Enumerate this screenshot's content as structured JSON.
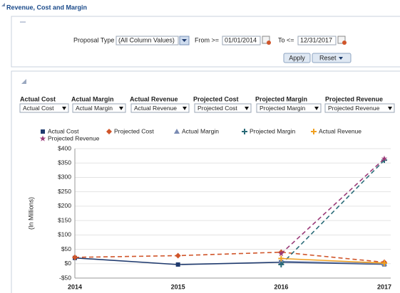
{
  "header": {
    "title": "Revenue, Cost and Margin"
  },
  "filters": {
    "proposal_type_label": "Proposal Type",
    "proposal_type_value": "(All Column Values)",
    "from_label": "From >=",
    "from_value": "01/01/2014",
    "to_label": "To <=",
    "to_value": "12/31/2017",
    "apply": "Apply",
    "reset": "Reset"
  },
  "column_selectors": [
    {
      "label": "Actual Cost",
      "value": "Actual Cost"
    },
    {
      "label": "Actual Margin",
      "value": "Actual Margin"
    },
    {
      "label": "Actual Revenue",
      "value": "Actual Revenue"
    },
    {
      "label": "Projected Cost",
      "value": "Projected Cost"
    },
    {
      "label": "Projected Margin",
      "value": "Projected Margin"
    },
    {
      "label": "Projected Revenue",
      "value": "Projected Revenue"
    }
  ],
  "chart_data": {
    "type": "line",
    "y_label": "(In Millions)",
    "categories": [
      "2014",
      "2015",
      "2016",
      "2017"
    ],
    "series": [
      {
        "name": "Actual Cost",
        "color": "#1f3a6e",
        "dashed": false,
        "marker": "square",
        "values": [
          20,
          -3,
          5,
          -2
        ]
      },
      {
        "name": "Projected Cost",
        "color": "#d0552a",
        "dashed": true,
        "marker": "diamond",
        "values": [
          22,
          28,
          40,
          5
        ]
      },
      {
        "name": "Actual Margin",
        "color": "#7a8bb3",
        "dashed": false,
        "marker": "triangle",
        "values": [
          null,
          null,
          8,
          0
        ]
      },
      {
        "name": "Projected Margin",
        "color": "#2a6b78",
        "dashed": true,
        "marker": "plus",
        "values": [
          null,
          null,
          -3,
          360
        ]
      },
      {
        "name": "Actual Revenue",
        "color": "#f0a020",
        "dashed": false,
        "marker": "plus",
        "values": [
          null,
          null,
          18,
          2
        ]
      },
      {
        "name": "Projected Revenue",
        "color": "#9a3a78",
        "dashed": true,
        "marker": "star",
        "values": [
          null,
          null,
          35,
          365
        ]
      }
    ],
    "ylim": [
      -50,
      400
    ],
    "yticks": [
      {
        "value": -50,
        "label": "-$50"
      },
      {
        "value": 0,
        "label": "$0"
      },
      {
        "value": 50,
        "label": "$50"
      },
      {
        "value": 100,
        "label": "$100"
      },
      {
        "value": 150,
        "label": "$150"
      },
      {
        "value": 200,
        "label": "$200"
      },
      {
        "value": 250,
        "label": "$250"
      },
      {
        "value": 300,
        "label": "$300"
      },
      {
        "value": 350,
        "label": "$350"
      },
      {
        "value": 400,
        "label": "$400"
      }
    ],
    "grid": true
  }
}
